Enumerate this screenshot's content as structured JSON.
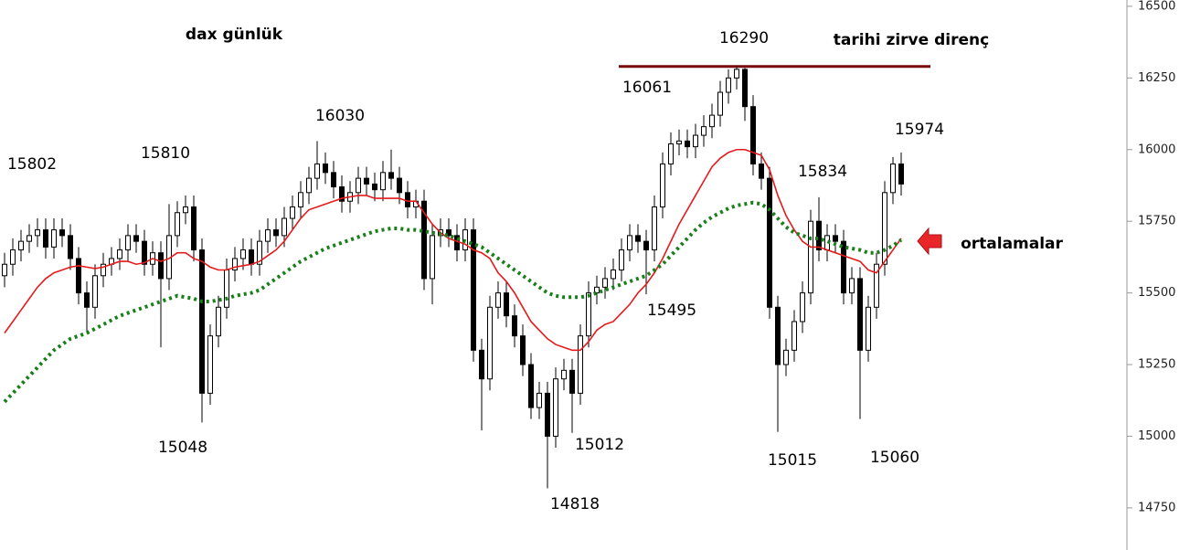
{
  "chart_data": {
    "type": "candlestick",
    "title": "dax günlük",
    "open": [
      15560,
      15600,
      15650,
      15680,
      15700,
      15720,
      15660,
      15720,
      15700,
      15620,
      15500,
      15450,
      15560,
      15600,
      15620,
      15650,
      15700,
      15680,
      15600,
      15640,
      15550,
      15700,
      15780,
      15800,
      15650,
      15150,
      15350,
      15450,
      15580,
      15620,
      15650,
      15600,
      15680,
      15720,
      15700,
      15760,
      15800,
      15850,
      15900,
      15950,
      15920,
      15870,
      15820,
      15850,
      15900,
      15880,
      15860,
      15920,
      15900,
      15850,
      15800,
      15820,
      15550,
      15700,
      15720,
      15700,
      15650,
      15720,
      15300,
      15200,
      15450,
      15500,
      15420,
      15350,
      15250,
      15100,
      15150,
      15000,
      15200,
      15230,
      15150,
      15350,
      15500,
      15520,
      15550,
      15580,
      15650,
      15700,
      15680,
      15650,
      15800,
      15950,
      16020,
      16030,
      16010,
      16050,
      16080,
      16120,
      16200,
      16250,
      16280,
      16150,
      15950,
      15900,
      15450,
      15250,
      15300,
      15400,
      15500,
      15750,
      15650,
      15700,
      15680,
      15500,
      15550,
      15300,
      15450,
      15600,
      15850,
      15950
    ],
    "high": [
      15640,
      15690,
      15720,
      15740,
      15760,
      15760,
      15760,
      15760,
      15740,
      15660,
      15540,
      15600,
      15640,
      15660,
      15690,
      15740,
      15740,
      15720,
      15680,
      15680,
      15810,
      15820,
      15840,
      15840,
      15690,
      15390,
      15490,
      15620,
      15660,
      15690,
      15690,
      15720,
      15760,
      15760,
      15800,
      15840,
      15890,
      15940,
      16030,
      15990,
      15960,
      15910,
      15890,
      15940,
      15940,
      15920,
      15960,
      16000,
      15940,
      15890,
      15860,
      15860,
      15740,
      15760,
      15760,
      15740,
      15760,
      15760,
      15340,
      15490,
      15540,
      15540,
      15460,
      15390,
      15290,
      15190,
      15190,
      15240,
      15270,
      15270,
      15390,
      15540,
      15560,
      15590,
      15620,
      15690,
      15740,
      15740,
      15720,
      15840,
      15990,
      16060,
      16070,
      16070,
      16090,
      16120,
      16160,
      16240,
      16280,
      16290,
      16285,
      16190,
      15990,
      15940,
      15490,
      15340,
      15440,
      15540,
      15790,
      15834,
      15740,
      15740,
      15720,
      15590,
      15590,
      15490,
      15640,
      15890,
      15974,
      15990
    ],
    "low": [
      15520,
      15560,
      15610,
      15640,
      15660,
      15620,
      15620,
      15660,
      15580,
      15460,
      15360,
      15410,
      15520,
      15560,
      15580,
      15610,
      15640,
      15560,
      15560,
      15310,
      15510,
      15660,
      15740,
      15610,
      15048,
      15110,
      15310,
      15410,
      15540,
      15580,
      15560,
      15560,
      15640,
      15660,
      15660,
      15720,
      15760,
      15810,
      15860,
      15880,
      15830,
      15780,
      15780,
      15810,
      15840,
      15820,
      15820,
      15860,
      15810,
      15760,
      15760,
      15510,
      15460,
      15660,
      15660,
      15610,
      15610,
      15260,
      15020,
      15160,
      15410,
      15380,
      15310,
      15210,
      15060,
      15060,
      14818,
      14960,
      15160,
      15012,
      15110,
      15310,
      15460,
      15480,
      15510,
      15540,
      15610,
      15640,
      15495,
      15610,
      15760,
      15910,
      15980,
      15970,
      15970,
      16010,
      16040,
      16080,
      16160,
      16210,
      16100,
      15910,
      15860,
      15410,
      15015,
      15210,
      15260,
      15360,
      15460,
      15610,
      15610,
      15640,
      15460,
      15460,
      15060,
      15260,
      15410,
      15560,
      15810,
      15840
    ],
    "close": [
      15600,
      15650,
      15680,
      15700,
      15720,
      15660,
      15720,
      15700,
      15620,
      15500,
      15450,
      15560,
      15600,
      15620,
      15650,
      15700,
      15680,
      15600,
      15640,
      15550,
      15700,
      15780,
      15800,
      15650,
      15150,
      15350,
      15450,
      15580,
      15620,
      15650,
      15600,
      15680,
      15720,
      15700,
      15760,
      15800,
      15850,
      15900,
      15950,
      15920,
      15870,
      15820,
      15850,
      15900,
      15880,
      15860,
      15920,
      15900,
      15850,
      15800,
      15820,
      15550,
      15700,
      15720,
      15700,
      15650,
      15720,
      15300,
      15200,
      15450,
      15500,
      15420,
      15350,
      15250,
      15100,
      15150,
      15000,
      15200,
      15230,
      15150,
      15350,
      15500,
      15520,
      15550,
      15580,
      15650,
      15700,
      15680,
      15650,
      15800,
      15950,
      16020,
      16030,
      16010,
      16050,
      16080,
      16120,
      16200,
      16250,
      16280,
      16150,
      15950,
      15900,
      15450,
      15250,
      15300,
      15400,
      15500,
      15750,
      15650,
      15700,
      15680,
      15500,
      15550,
      15300,
      15450,
      15600,
      15850,
      15950,
      15880
    ],
    "up_color": "#ffffff",
    "down_color": "#000000",
    "series": [
      {
        "type": "line",
        "color": "#e41a1c",
        "values": [
          15360,
          15400,
          15440,
          15480,
          15520,
          15550,
          15570,
          15580,
          15590,
          15595,
          15590,
          15585,
          15590,
          15600,
          15610,
          15610,
          15600,
          15605,
          15620,
          15610,
          15620,
          15640,
          15640,
          15620,
          15610,
          15590,
          15580,
          15580,
          15590,
          15595,
          15600,
          15610,
          15630,
          15650,
          15680,
          15720,
          15760,
          15790,
          15800,
          15810,
          15820,
          15830,
          15835,
          15840,
          15840,
          15830,
          15830,
          15830,
          15830,
          15820,
          15820,
          15780,
          15740,
          15710,
          15690,
          15680,
          15670,
          15650,
          15640,
          15620,
          15570,
          15540,
          15500,
          15450,
          15400,
          15370,
          15340,
          15320,
          15310,
          15300,
          15300,
          15330,
          15370,
          15390,
          15400,
          15430,
          15460,
          15500,
          15530,
          15570,
          15620,
          15680,
          15740,
          15790,
          15840,
          15890,
          15940,
          15970,
          15990,
          16000,
          16000,
          15990,
          15980,
          15930,
          15840,
          15770,
          15720,
          15680,
          15660,
          15660,
          15650,
          15640,
          15630,
          15620,
          15610,
          15580,
          15570,
          15610,
          15650,
          15690
        ]
      },
      {
        "type": "line",
        "style": "dotted",
        "color": "#1a7f1a",
        "values": [
          15120,
          15150,
          15180,
          15210,
          15240,
          15270,
          15300,
          15320,
          15340,
          15350,
          15360,
          15375,
          15390,
          15405,
          15420,
          15430,
          15440,
          15450,
          15460,
          15470,
          15480,
          15490,
          15485,
          15480,
          15470,
          15470,
          15475,
          15480,
          15490,
          15495,
          15500,
          15510,
          15530,
          15550,
          15570,
          15590,
          15610,
          15625,
          15640,
          15655,
          15665,
          15675,
          15685,
          15695,
          15705,
          15715,
          15720,
          15725,
          15725,
          15720,
          15720,
          15715,
          15710,
          15705,
          15700,
          15690,
          15680,
          15670,
          15660,
          15640,
          15620,
          15600,
          15580,
          15560,
          15540,
          15520,
          15500,
          15490,
          15485,
          15485,
          15485,
          15490,
          15500,
          15510,
          15520,
          15530,
          15540,
          15550,
          15560,
          15580,
          15600,
          15630,
          15660,
          15690,
          15720,
          15745,
          15765,
          15780,
          15795,
          15805,
          15810,
          15815,
          15810,
          15790,
          15760,
          15730,
          15710,
          15700,
          15690,
          15690,
          15680,
          15670,
          15660,
          15655,
          15650,
          15640,
          15640,
          15650,
          15665,
          15685
        ]
      }
    ],
    "hline": {
      "value": 16290,
      "color": "#7b0a0a"
    },
    "ylim": [
      14603,
      16522
    ],
    "yticks": [
      14750,
      15000,
      15250,
      15500,
      15750,
      16000,
      16250,
      16500
    ],
    "annotations": [
      {
        "text": "15802"
      },
      {
        "text": "15810"
      },
      {
        "text": "16030"
      },
      {
        "text": "15048"
      },
      {
        "text": "16290"
      },
      {
        "text": "16061"
      },
      {
        "text": "15495"
      },
      {
        "text": "15012"
      },
      {
        "text": "14818"
      },
      {
        "text": "15834"
      },
      {
        "text": "15974"
      },
      {
        "text": "15015"
      },
      {
        "text": "15060"
      },
      {
        "text": "tarihi zirve direnç",
        "color": "#7b0a0a"
      },
      {
        "text": "ortalamalar",
        "color": "#e8262a"
      }
    ]
  }
}
